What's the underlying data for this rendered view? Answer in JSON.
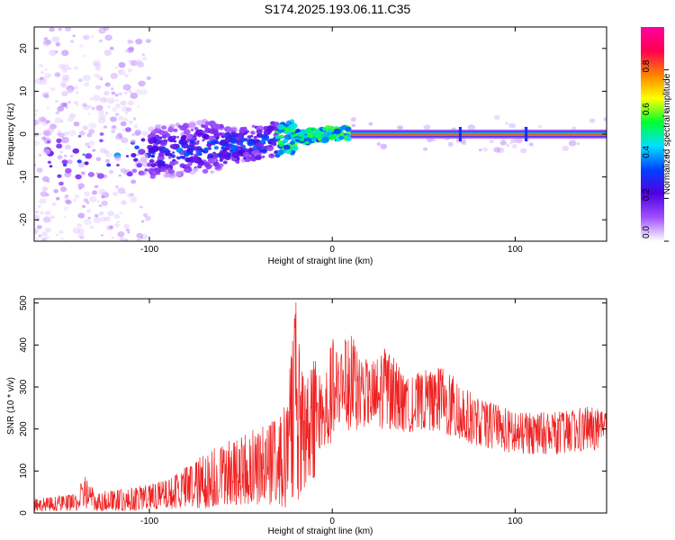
{
  "title": "S174.2025.193.06.11.C35",
  "chart_data": [
    {
      "type": "heatmap",
      "xlabel": "Height of straight line (km)",
      "ylabel": "Frequency (Hz)",
      "xlim": [
        -163,
        150
      ],
      "ylim": [
        -25,
        25
      ],
      "xticks": [
        -100,
        0,
        100
      ],
      "yticks": [
        -20,
        -10,
        0,
        10,
        20
      ],
      "colorbar": {
        "label": "Normalized spectral amplitude",
        "range": [
          0,
          1
        ],
        "ticks": [
          0.0,
          0.2,
          0.4,
          0.6,
          0.8
        ],
        "stops": [
          "#ffffff",
          "#a050ff",
          "#5000e0",
          "#0040ff",
          "#00e0ff",
          "#00ff30",
          "#ffff00",
          "#ff8000",
          "#ff0050",
          "#ff00a0"
        ]
      },
      "ridge": {
        "description_points": [
          [
            -150,
            -6
          ],
          [
            -120,
            -5
          ],
          [
            -90,
            -4
          ],
          [
            -70,
            -3
          ],
          [
            -50,
            -2.5
          ],
          [
            -35,
            -1.5
          ],
          [
            -22,
            -0.8
          ],
          [
            -10,
            -0.3
          ],
          [
            0,
            0
          ],
          [
            10,
            0.2
          ],
          [
            150,
            0.2
          ]
        ],
        "stable_band_start_x": 10,
        "stable_band_amplitude": 0.85
      }
    },
    {
      "type": "line",
      "xlabel": "Height of straight line (km)",
      "ylabel": "SNR (10 * v/v)",
      "xlim": [
        -163,
        150
      ],
      "ylim": [
        0,
        510
      ],
      "xticks": [
        -100,
        0,
        100
      ],
      "yticks": [
        0,
        100,
        200,
        300,
        400,
        500
      ],
      "color": "#ee2222",
      "envelope": {
        "x": [
          -163,
          -140,
          -135,
          -130,
          -110,
          -90,
          -70,
          -60,
          -50,
          -40,
          -30,
          -25,
          -20,
          -15,
          -10,
          -5,
          0,
          5,
          10,
          15,
          20,
          25,
          30,
          35,
          40,
          50,
          60,
          70,
          80,
          90,
          100,
          110,
          120,
          130,
          140,
          150
        ],
        "upper": [
          35,
          45,
          95,
          50,
          60,
          80,
          140,
          170,
          180,
          210,
          230,
          260,
          510,
          310,
          380,
          330,
          420,
          400,
          440,
          380,
          360,
          380,
          400,
          360,
          320,
          340,
          350,
          310,
          270,
          260,
          240,
          240,
          240,
          245,
          255,
          240
        ],
        "lower": [
          5,
          5,
          10,
          5,
          5,
          10,
          10,
          20,
          20,
          20,
          20,
          10,
          20,
          50,
          80,
          130,
          170,
          180,
          190,
          200,
          210,
          200,
          200,
          200,
          190,
          200,
          190,
          170,
          160,
          150,
          140,
          140,
          140,
          140,
          150,
          150
        ]
      }
    }
  ]
}
